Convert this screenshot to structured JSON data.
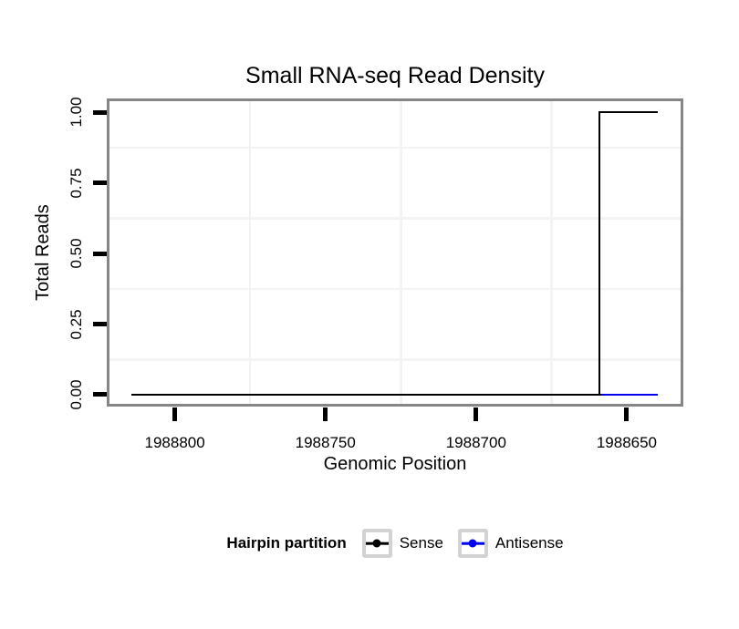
{
  "chart_data": {
    "type": "line",
    "title": "Small RNA-seq Read Density",
    "xlabel": "Genomic Position",
    "ylabel": "Total Reads",
    "x_axis_reversed": true,
    "xlim": [
      1988822.6,
      1988631.2
    ],
    "ylim": [
      -0.042,
      1.049
    ],
    "x_ticks": [
      {
        "value": 1988800,
        "label": "1988800"
      },
      {
        "value": 1988750,
        "label": "1988750"
      },
      {
        "value": 1988700,
        "label": "1988700"
      },
      {
        "value": 1988650,
        "label": "1988650"
      }
    ],
    "y_ticks": [
      {
        "value": 0.0,
        "label": "0.00"
      },
      {
        "value": 0.25,
        "label": "0.25"
      },
      {
        "value": 0.5,
        "label": "0.50"
      },
      {
        "value": 0.75,
        "label": "0.75"
      },
      {
        "value": 1.0,
        "label": "1.00"
      }
    ],
    "grid_minor_x": [
      1988775,
      1988725,
      1988675
    ],
    "grid_minor_y": [
      0.125,
      0.375,
      0.625,
      0.875
    ],
    "grid_on": true,
    "series": [
      {
        "name": "Antisense",
        "color": "#0000ee",
        "points": [
          [
            1988814,
            0
          ],
          [
            1988640,
            0
          ]
        ]
      },
      {
        "name": "Sense",
        "color": "#000000",
        "points": [
          [
            1988814,
            0
          ],
          [
            1988659,
            0
          ],
          [
            1988659,
            1
          ],
          [
            1988640,
            1
          ]
        ]
      }
    ],
    "legend": {
      "title": "Hairpin partition",
      "position": "bottom",
      "entries": [
        {
          "label": "Sense",
          "color": "#000000"
        },
        {
          "label": "Antisense",
          "color": "#0000ee"
        }
      ]
    },
    "colors": {
      "panel_border": "#868686",
      "grid_minor": "#f3f3f3",
      "tick_mark": "#000000",
      "text": "#000000"
    }
  }
}
